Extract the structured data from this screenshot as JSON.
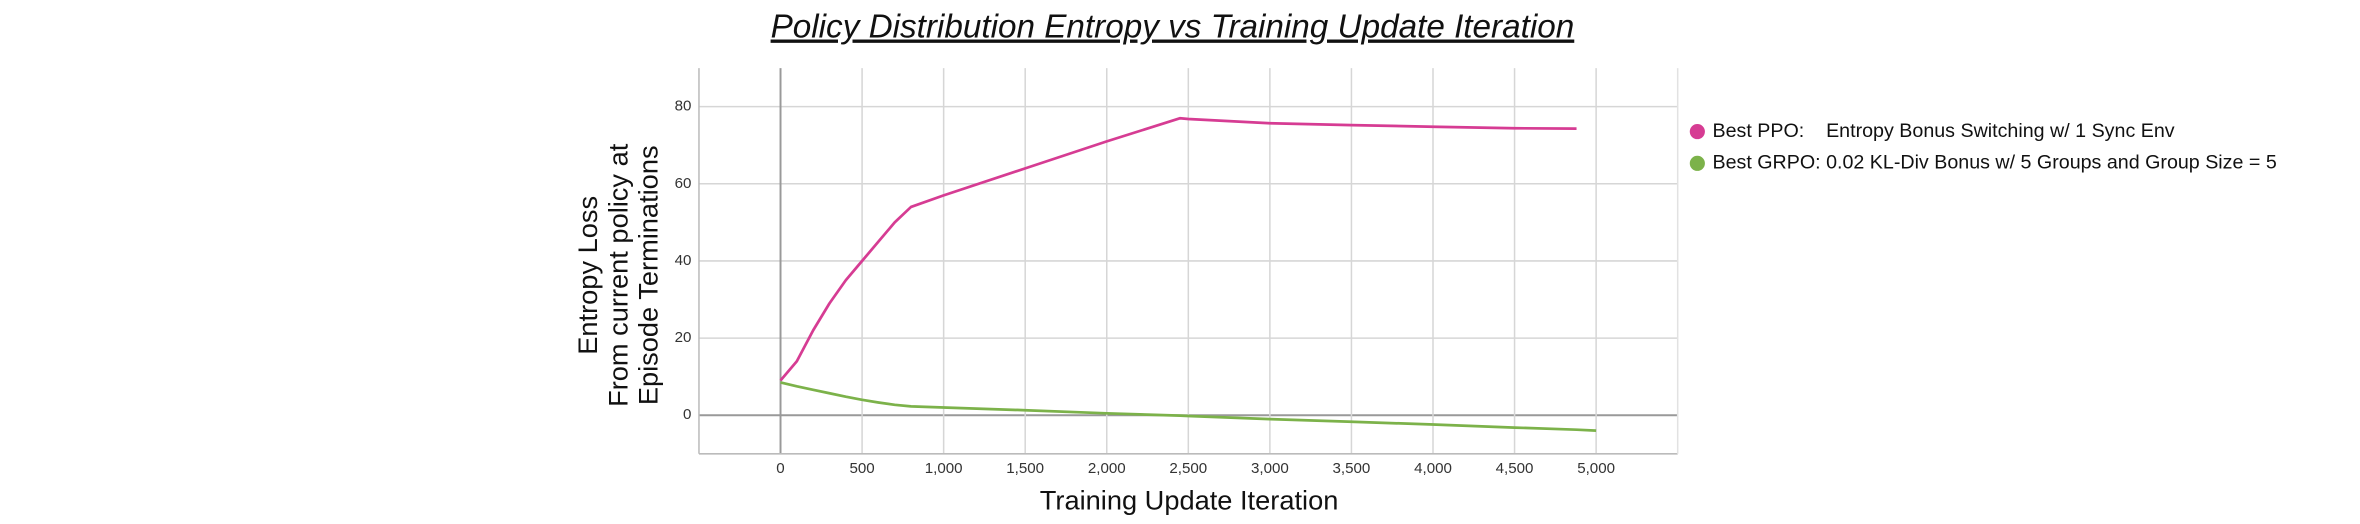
{
  "chart_data": {
    "type": "line",
    "title": "Policy Distribution Entropy vs Training Update Iteration",
    "x_label": "Training Update Iteration",
    "y_label": [
      "Entropy Loss",
      "From current policy at",
      "Episode Terminations"
    ],
    "x": [
      0,
      100,
      200,
      300,
      400,
      500,
      600,
      700,
      800,
      1000,
      1500,
      2000,
      2450,
      2500,
      3000,
      3500,
      4000,
      4500,
      4880,
      5000
    ],
    "series": [
      {
        "name": "Best PPO:    Entropy Bonus Switching w/ 1 Sync Env",
        "color": "#d63c93",
        "values": [
          9,
          14,
          22,
          29,
          35,
          40,
          45,
          50,
          54,
          57,
          64,
          71,
          77,
          76.8,
          75.7,
          75.2,
          74.8,
          74.4,
          74.3,
          null
        ]
      },
      {
        "name": "Best GRPO: 0.02 KL-Div Bonus w/ 5 Groups and Group Size = 5",
        "color": "#7cb24a",
        "values": [
          8.5,
          7.5,
          6.6,
          5.7,
          4.8,
          4,
          3.3,
          2.7,
          2.3,
          2,
          1.3,
          0.5,
          -0.1,
          -0.2,
          -1,
          -1.7,
          -2.4,
          -3.2,
          -3.75,
          -4
        ]
      }
    ],
    "xlim": [
      -500,
      5500
    ],
    "ylim": [
      -10,
      90
    ],
    "xticks": [
      0,
      500,
      {
        "value": 1000,
        "label": "1,000"
      },
      {
        "value": 1500,
        "label": "1,500"
      },
      {
        "value": 2000,
        "label": "2,000"
      },
      {
        "value": 2500,
        "label": "2,500"
      },
      {
        "value": 3000,
        "label": "3,000"
      },
      {
        "value": 3500,
        "label": "3,500"
      },
      {
        "value": 4000,
        "label": "4,000"
      },
      {
        "value": 4500,
        "label": "4,500"
      },
      {
        "value": 5000,
        "label": "5,000"
      }
    ],
    "yticks": [
      0,
      20,
      40,
      60,
      80
    ],
    "grid": true,
    "legend": "right"
  }
}
